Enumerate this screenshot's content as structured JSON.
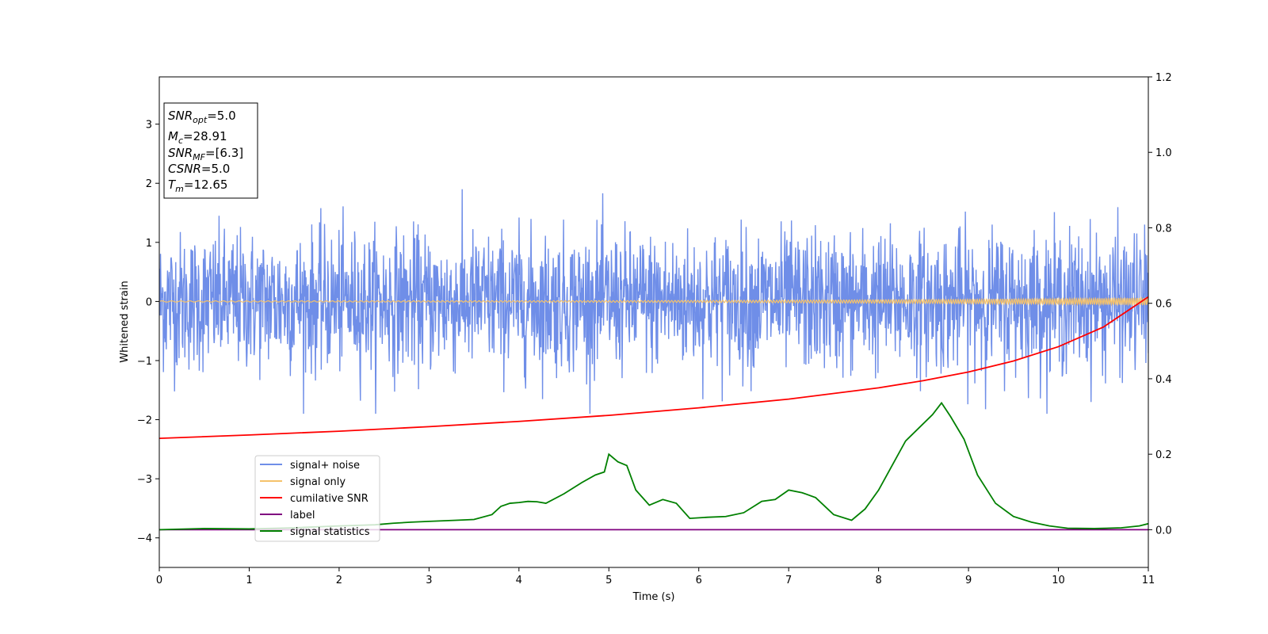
{
  "chart_data": {
    "type": "line",
    "title": "",
    "xlabel": "Time (s)",
    "ylabel": "Whitened strain",
    "xlim": [
      0,
      11
    ],
    "ylim_left": [
      -4.5,
      3.8
    ],
    "ylim_right": [
      -0.1,
      1.2
    ],
    "x_ticks": [
      0,
      1,
      2,
      3,
      4,
      5,
      6,
      7,
      8,
      9,
      10,
      11
    ],
    "x_tick_labels": [
      "0",
      "1",
      "2",
      "3",
      "4",
      "5",
      "6",
      "7",
      "8",
      "9",
      "10",
      "11"
    ],
    "y_left_ticks": [
      -4,
      -3,
      -2,
      -1,
      0,
      1,
      2,
      3
    ],
    "y_left_tick_labels": [
      "−4",
      "−3",
      "−2",
      "−1",
      "0",
      "1",
      "2",
      "3"
    ],
    "y_right_ticks": [
      0.0,
      0.2,
      0.4,
      0.6,
      0.8,
      1.0,
      1.2
    ],
    "y_right_tick_labels": [
      "0.0",
      "0.2",
      "0.4",
      "0.6",
      "0.8",
      "1.0",
      "1.2"
    ],
    "grid": false,
    "legend_placement": "lower-left",
    "series": [
      {
        "name": "signal+ noise",
        "color": "#6f8ee8",
        "axis": "left",
        "kind": "noise",
        "amplitude_std": 0.58,
        "approx_range": [
          -1.9,
          2.1
        ]
      },
      {
        "name": "signal only",
        "color": "#f5c26b",
        "axis": "left",
        "kind": "chirp",
        "amplitude_start": 0.01,
        "amplitude_end": 0.06
      },
      {
        "name": "cumilative SNR",
        "color": "#ff0000",
        "axis": "right",
        "x": [
          0,
          1,
          2,
          3,
          4,
          5,
          6,
          7,
          8,
          8.5,
          9,
          9.5,
          10,
          10.5,
          11
        ],
        "values": [
          0.242,
          0.251,
          0.261,
          0.273,
          0.287,
          0.303,
          0.323,
          0.346,
          0.376,
          0.395,
          0.418,
          0.447,
          0.485,
          0.537,
          0.617
        ]
      },
      {
        "name": "label",
        "color": "#800080",
        "axis": "right",
        "x": [
          0,
          11
        ],
        "values": [
          0.0,
          0.0
        ]
      },
      {
        "name": "signal statistics",
        "color": "#008000",
        "axis": "right",
        "x": [
          0,
          0.5,
          1,
          1.5,
          2,
          2.4,
          2.6,
          2.8,
          3,
          3.3,
          3.5,
          3.7,
          3.8,
          3.9,
          4,
          4.1,
          4.2,
          4.3,
          4.5,
          4.7,
          4.85,
          4.95,
          5.0,
          5.1,
          5.2,
          5.3,
          5.45,
          5.6,
          5.75,
          5.9,
          6.1,
          6.3,
          6.5,
          6.7,
          6.85,
          7.0,
          7.15,
          7.3,
          7.5,
          7.7,
          7.85,
          8.0,
          8.15,
          8.3,
          8.45,
          8.6,
          8.7,
          8.8,
          8.95,
          9.1,
          9.3,
          9.5,
          9.7,
          9.9,
          10.1,
          10.4,
          10.7,
          10.9,
          11
        ],
        "values": [
          0.0,
          0.003,
          0.002,
          0.005,
          0.01,
          0.013,
          0.017,
          0.02,
          0.022,
          0.025,
          0.027,
          0.04,
          0.062,
          0.07,
          0.072,
          0.075,
          0.074,
          0.07,
          0.095,
          0.125,
          0.145,
          0.153,
          0.2,
          0.18,
          0.17,
          0.105,
          0.065,
          0.08,
          0.07,
          0.03,
          0.033,
          0.035,
          0.045,
          0.075,
          0.08,
          0.105,
          0.098,
          0.085,
          0.04,
          0.025,
          0.055,
          0.105,
          0.17,
          0.235,
          0.27,
          0.305,
          0.336,
          0.3,
          0.24,
          0.145,
          0.07,
          0.035,
          0.02,
          0.01,
          0.004,
          0.003,
          0.005,
          0.01,
          0.016
        ]
      }
    ],
    "annotations": {
      "snr_opt": {
        "symbol": "SNR",
        "subscript": "opt",
        "value": "=5.0"
      },
      "mc": {
        "symbol": "M",
        "subscript": "c",
        "value": "=28.91"
      },
      "snr_mf": {
        "symbol": "SNR",
        "subscript": "MF",
        "value": "=[6.3]"
      },
      "csnr": {
        "symbol": "CSNR",
        "value": "=5.0"
      },
      "tm": {
        "symbol": "T",
        "subscript": "m",
        "value": "=12.65"
      }
    }
  }
}
